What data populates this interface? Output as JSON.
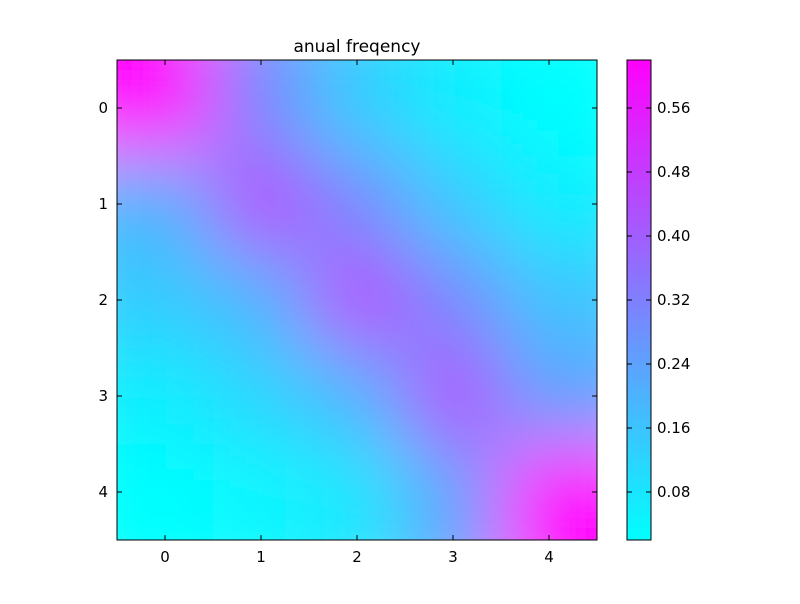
{
  "chart_data": {
    "type": "heatmap",
    "title": "anual freqency",
    "xlabel": "",
    "ylabel": "",
    "x_ticks": [
      "0",
      "1",
      "2",
      "3",
      "4"
    ],
    "y_ticks": [
      "0",
      "1",
      "2",
      "3",
      "4"
    ],
    "xlim": [
      -0.5,
      4.5
    ],
    "ylim": [
      4.5,
      -0.5
    ],
    "grid": false,
    "colormap": "cool",
    "colormap_low": "#00ffff",
    "colormap_high": "#ff00ff",
    "values": [
      [
        0.62,
        0.3,
        0.14,
        0.06,
        0.02
      ],
      [
        0.2,
        0.45,
        0.3,
        0.15,
        0.06
      ],
      [
        0.14,
        0.2,
        0.45,
        0.3,
        0.16
      ],
      [
        0.06,
        0.12,
        0.2,
        0.44,
        0.24
      ],
      [
        0.02,
        0.04,
        0.08,
        0.24,
        0.62
      ]
    ],
    "vmin": 0.02,
    "vmax": 0.62,
    "colorbar": {
      "ticks": [
        "0.08",
        "0.16",
        "0.24",
        "0.32",
        "0.40",
        "0.48",
        "0.56"
      ],
      "tick_values": [
        0.08,
        0.16,
        0.24,
        0.32,
        0.4,
        0.48,
        0.56
      ]
    }
  }
}
